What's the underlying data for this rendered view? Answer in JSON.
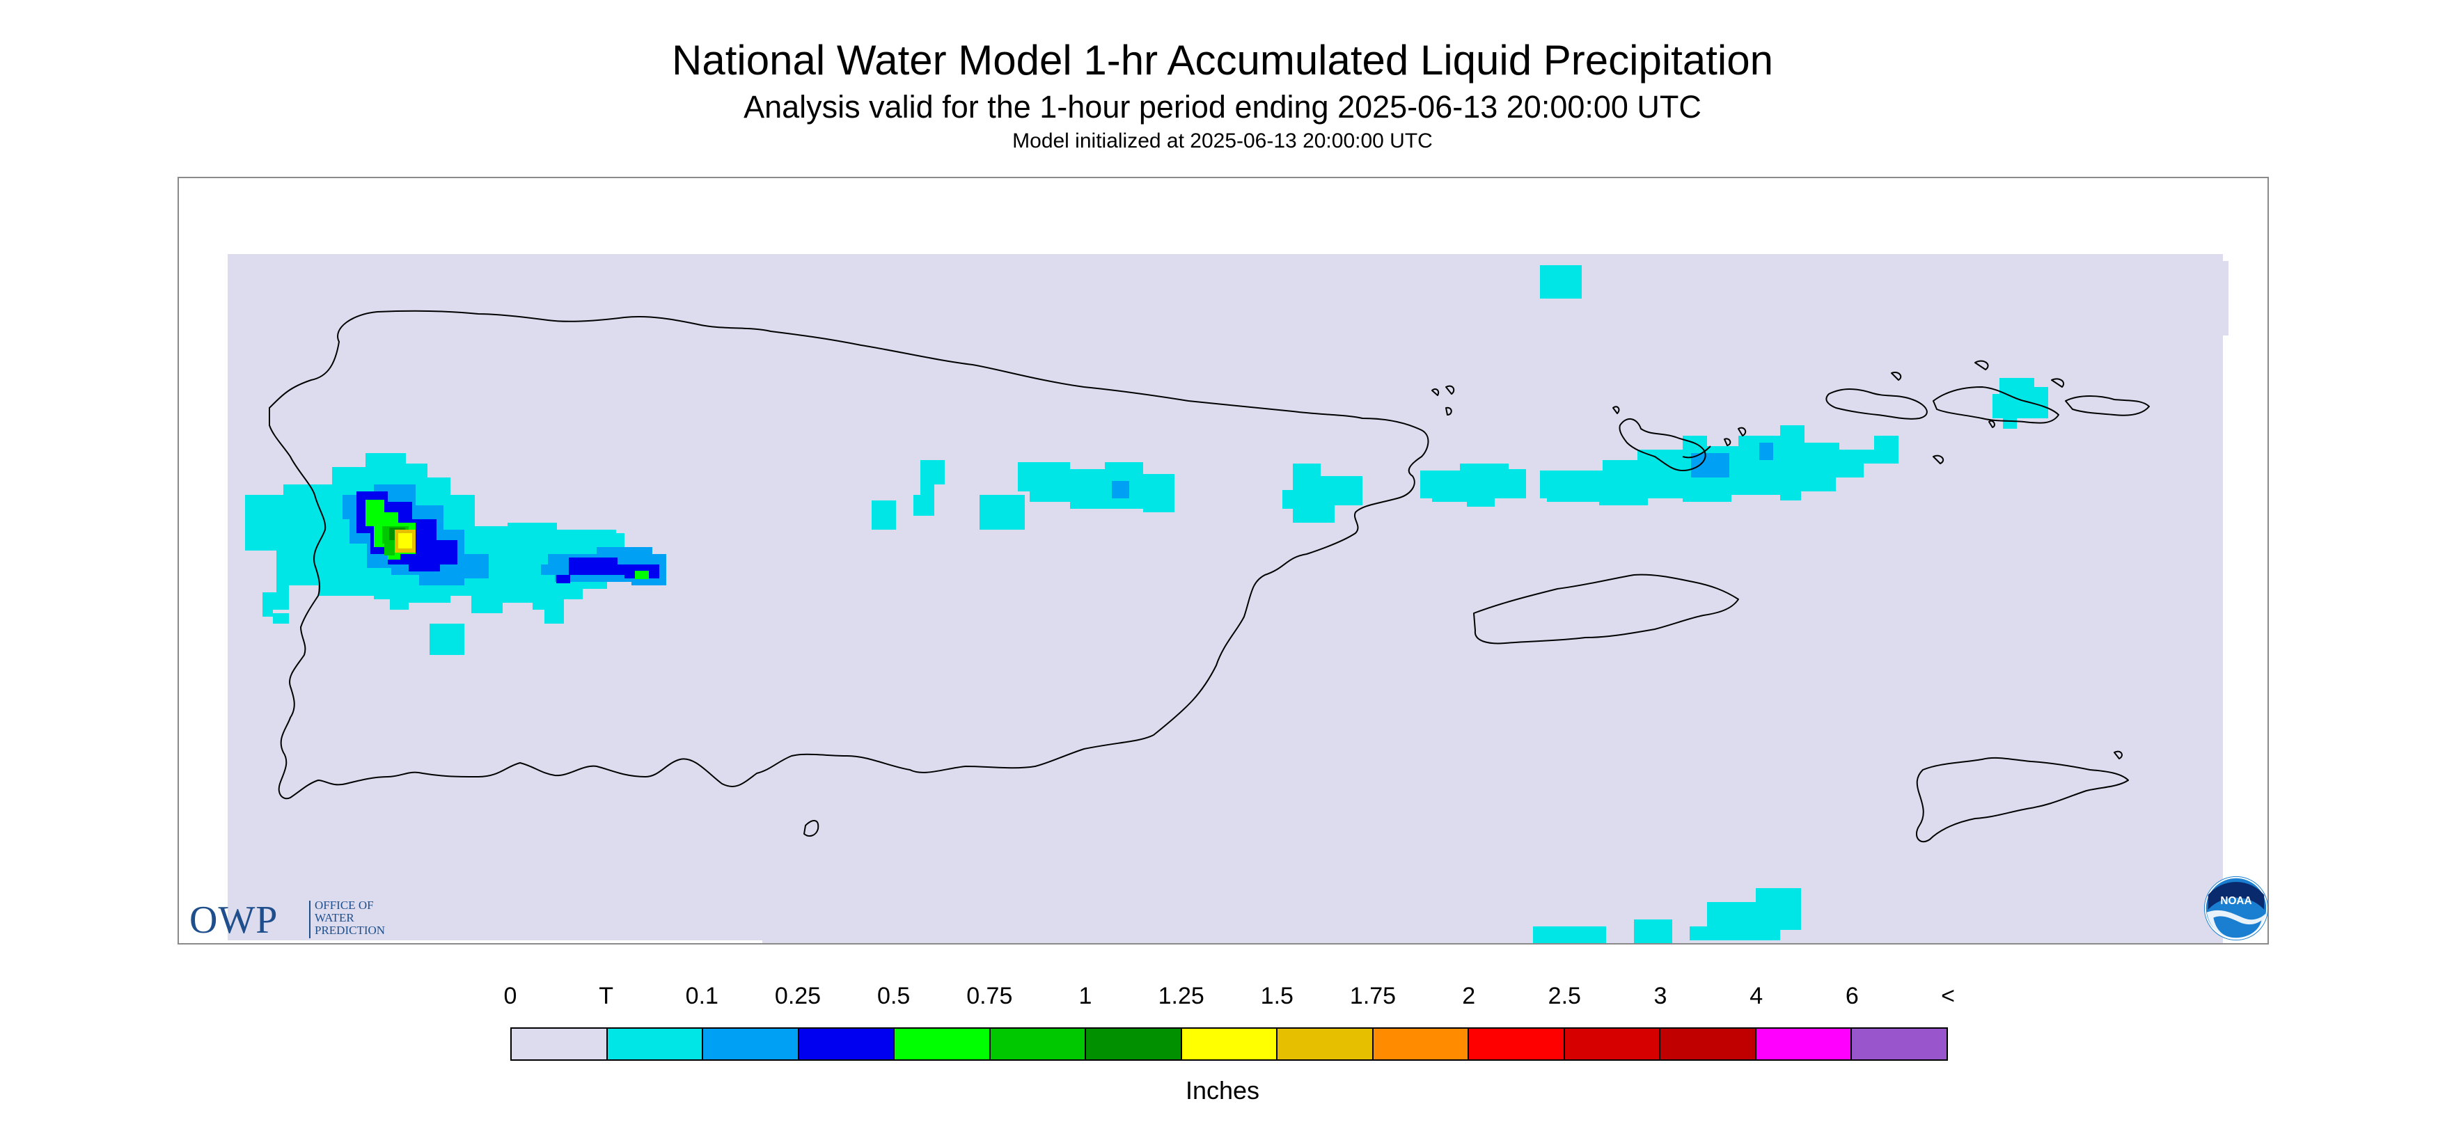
{
  "header": {
    "title": "National Water Model 1-hr Accumulated Liquid Precipitation",
    "subtitle": "Analysis valid for the 1-hour period ending 2025-06-13 20:00:00 UTC",
    "init": "Model initialized at 2025-06-13 20:00:00 UTC"
  },
  "logos": {
    "owp_letters": "OWP",
    "owp_text": "OFFICE OF\nWATER\nPREDICTION",
    "noaa_text": "NOAA"
  },
  "legend": {
    "unit": "Inches",
    "labels": [
      "0",
      "T",
      "0.1",
      "0.25",
      "0.5",
      "0.75",
      "1",
      "1.25",
      "1.5",
      "1.75",
      "2",
      "2.5",
      "3",
      "4",
      "6",
      "<"
    ],
    "colors": [
      "#dcdcee",
      "#00e5e5",
      "#00a0f5",
      "#0000f0",
      "#00ff00",
      "#00c800",
      "#009000",
      "#ffff00",
      "#e6bf00",
      "#ff8c00",
      "#ff0000",
      "#d70000",
      "#c00000",
      "#ff00ff",
      "#9955cc"
    ]
  },
  "map": {
    "background_color": "#dcdcee",
    "coastline_color": "#000000",
    "regions": [
      "Puerto Rico",
      "Vieques",
      "U.S. Virgin Islands",
      "St. Croix"
    ]
  }
}
